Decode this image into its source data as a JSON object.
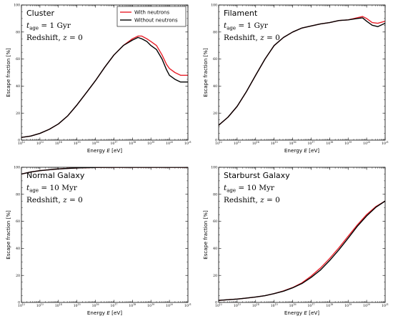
{
  "colors": {
    "with_neutrons": "#e8202a",
    "without_neutrons": "#000000"
  },
  "chart_data": [
    {
      "type": "line",
      "id": "cluster",
      "xscale": "log",
      "xlim": [
        1000000000000.0,
        1e+21
      ],
      "ylim": [
        0,
        100
      ],
      "xlabel": "Energy E [eV]",
      "ylabel": "Escape fraction [%]",
      "x_ticks": [
        "10^12",
        "10^13",
        "10^14",
        "10^15",
        "10^16",
        "10^17",
        "10^18",
        "10^19",
        "10^20",
        "10^21"
      ],
      "y_ticks": [
        "0",
        "20",
        "40",
        "60",
        "80",
        "100"
      ],
      "annotations": [
        "Cluster",
        "t_age = 1 Gyr",
        "Redshift, z = 0"
      ],
      "legend": {
        "placement": "top-right",
        "entries": [
          "With neutrons",
          "Without neutrons"
        ]
      },
      "series": [
        {
          "name": "With neutrons",
          "color": "red",
          "points": [
            [
              1000000000000.0,
              2
            ],
            [
              3200000000000.0,
              3
            ],
            [
              10000000000000.0,
              5
            ],
            [
              32000000000000.0,
              8
            ],
            [
              100000000000000.0,
              12
            ],
            [
              320000000000000.0,
              18
            ],
            [
              1000000000000000.0,
              26
            ],
            [
              3200000000000000.0,
              35
            ],
            [
              1e+16,
              44
            ],
            [
              3.2e+16,
              54
            ],
            [
              1e+17,
              63
            ],
            [
              3.2e+17,
              70
            ],
            [
              1e+18,
              75
            ],
            [
              2e+18,
              77
            ],
            [
              3.2e+18,
              77
            ],
            [
              6e+18,
              75
            ],
            [
              1e+19,
              73
            ],
            [
              2e+19,
              70
            ],
            [
              4e+19,
              63
            ],
            [
              7e+19,
              56
            ],
            [
              1e+20,
              53
            ],
            [
              2e+20,
              50
            ],
            [
              4e+20,
              48
            ],
            [
              1e+21,
              48
            ]
          ]
        },
        {
          "name": "Without neutrons",
          "color": "black",
          "points": [
            [
              1000000000000.0,
              2
            ],
            [
              3200000000000.0,
              3
            ],
            [
              10000000000000.0,
              5
            ],
            [
              32000000000000.0,
              8
            ],
            [
              100000000000000.0,
              12
            ],
            [
              320000000000000.0,
              18
            ],
            [
              1000000000000000.0,
              26
            ],
            [
              3200000000000000.0,
              35
            ],
            [
              1e+16,
              44
            ],
            [
              3.2e+16,
              54
            ],
            [
              1e+17,
              63
            ],
            [
              3.2e+17,
              70
            ],
            [
              1e+18,
              74
            ],
            [
              2e+18,
              76
            ],
            [
              3.2e+18,
              75
            ],
            [
              6e+18,
              73
            ],
            [
              1e+19,
              70
            ],
            [
              2e+19,
              67
            ],
            [
              4e+19,
              60
            ],
            [
              7e+19,
              52
            ],
            [
              1e+20,
              48
            ],
            [
              2e+20,
              45
            ],
            [
              4e+20,
              43
            ],
            [
              1e+21,
              43
            ]
          ]
        }
      ]
    },
    {
      "type": "line",
      "id": "filament",
      "xscale": "log",
      "xlim": [
        1000000000000.0,
        1e+21
      ],
      "ylim": [
        0,
        100
      ],
      "xlabel": "Energy E [eV]",
      "ylabel": "Escape fraction [%]",
      "x_ticks": [
        "10^12",
        "10^13",
        "10^14",
        "10^15",
        "10^16",
        "10^17",
        "10^18",
        "10^19",
        "10^20",
        "10^21"
      ],
      "y_ticks": [
        "0",
        "20",
        "40",
        "60",
        "80",
        "100"
      ],
      "annotations": [
        "Filament",
        "t_age = 1 Gyr",
        "Redshift, z = 0"
      ],
      "series": [
        {
          "name": "With neutrons",
          "color": "red",
          "points": [
            [
              1000000000000.0,
              11
            ],
            [
              3200000000000.0,
              17
            ],
            [
              10000000000000.0,
              25
            ],
            [
              32000000000000.0,
              36
            ],
            [
              100000000000000.0,
              48
            ],
            [
              320000000000000.0,
              60
            ],
            [
              1000000000000000.0,
              70
            ],
            [
              3200000000000000.0,
              76
            ],
            [
              1e+16,
              80
            ],
            [
              3.2e+16,
              83
            ],
            [
              1e+17,
              84.5
            ],
            [
              3.2e+17,
              86
            ],
            [
              1e+18,
              87
            ],
            [
              3.2e+18,
              88.5
            ],
            [
              1e+19,
              89
            ],
            [
              3e+19,
              90.5
            ],
            [
              6e+19,
              91.5
            ],
            [
              1e+20,
              90
            ],
            [
              2e+20,
              87
            ],
            [
              4e+20,
              86.5
            ],
            [
              1e+21,
              88
            ]
          ]
        },
        {
          "name": "Without neutrons",
          "color": "black",
          "points": [
            [
              1000000000000.0,
              11
            ],
            [
              3200000000000.0,
              17
            ],
            [
              10000000000000.0,
              25
            ],
            [
              32000000000000.0,
              36
            ],
            [
              100000000000000.0,
              48
            ],
            [
              320000000000000.0,
              60
            ],
            [
              1000000000000000.0,
              70
            ],
            [
              3200000000000000.0,
              76
            ],
            [
              1e+16,
              80
            ],
            [
              3.2e+16,
              83
            ],
            [
              1e+17,
              84.5
            ],
            [
              3.2e+17,
              86
            ],
            [
              1e+18,
              87
            ],
            [
              3.2e+18,
              88.5
            ],
            [
              1e+19,
              89
            ],
            [
              3e+19,
              90
            ],
            [
              6e+19,
              90.5
            ],
            [
              1e+20,
              88
            ],
            [
              2e+20,
              85
            ],
            [
              4e+20,
              84
            ],
            [
              1e+21,
              86.5
            ]
          ]
        }
      ]
    },
    {
      "type": "line",
      "id": "normal-galaxy",
      "xscale": "log",
      "xlim": [
        1000000000000.0,
        1e+21
      ],
      "ylim": [
        0,
        100
      ],
      "xlabel": "Energy E [eV]",
      "ylabel": "Escape fraction [%]",
      "x_ticks": [
        "10^12",
        "10^13",
        "10^14",
        "10^15",
        "10^16",
        "10^17",
        "10^18",
        "10^19",
        "10^20",
        "10^21"
      ],
      "y_ticks": [
        "0",
        "20",
        "40",
        "60",
        "80",
        "100"
      ],
      "annotations": [
        "Normal Galaxy",
        "t_age = 10 Myr",
        "Redshift, z = 0"
      ],
      "series": [
        {
          "name": "With neutrons",
          "color": "red",
          "points": [
            [
              1000000000000.0,
              95
            ],
            [
              3200000000000.0,
              96.5
            ],
            [
              10000000000000.0,
              97.5
            ],
            [
              32000000000000.0,
              98.2
            ],
            [
              100000000000000.0,
              98.8
            ],
            [
              320000000000000.0,
              99.2
            ],
            [
              1000000000000000.0,
              99.5
            ],
            [
              3200000000000000.0,
              99.7
            ],
            [
              1e+16,
              99.9
            ],
            [
              1e+17,
              100
            ],
            [
              1e+18,
              100
            ],
            [
              1e+19,
              100
            ],
            [
              1e+20,
              100
            ],
            [
              1e+21,
              100
            ]
          ]
        },
        {
          "name": "Without neutrons",
          "color": "black",
          "points": [
            [
              1000000000000.0,
              95
            ],
            [
              3200000000000.0,
              96.5
            ],
            [
              10000000000000.0,
              97.5
            ],
            [
              32000000000000.0,
              98.2
            ],
            [
              100000000000000.0,
              98.8
            ],
            [
              320000000000000.0,
              99.2
            ],
            [
              1000000000000000.0,
              99.5
            ],
            [
              3200000000000000.0,
              99.7
            ],
            [
              1e+16,
              99.9
            ],
            [
              1e+17,
              100
            ],
            [
              1e+18,
              100
            ],
            [
              1e+19,
              100
            ],
            [
              1e+20,
              100
            ],
            [
              1e+21,
              100
            ]
          ]
        }
      ]
    },
    {
      "type": "line",
      "id": "starburst-galaxy",
      "xscale": "log",
      "xlim": [
        1000000000000.0,
        1e+21
      ],
      "ylim": [
        0,
        100
      ],
      "xlabel": "Energy E [eV]",
      "ylabel": "Escape fraction [%]",
      "x_ticks": [
        "10^12",
        "10^13",
        "10^14",
        "10^15",
        "10^16",
        "10^17",
        "10^18",
        "10^19",
        "10^20",
        "10^21"
      ],
      "y_ticks": [
        "0",
        "20",
        "40",
        "60",
        "80",
        "100"
      ],
      "annotations": [
        "Starburst Galaxy",
        "t_age = 10 Myr",
        "Redshift, z = 0"
      ],
      "series": [
        {
          "name": "With neutrons",
          "color": "red",
          "points": [
            [
              1000000000000.0,
              1.5
            ],
            [
              3200000000000.0,
              2
            ],
            [
              10000000000000.0,
              2.5
            ],
            [
              32000000000000.0,
              3.2
            ],
            [
              100000000000000.0,
              4
            ],
            [
              320000000000000.0,
              5
            ],
            [
              1000000000000000.0,
              6.5
            ],
            [
              3200000000000000.0,
              8.5
            ],
            [
              1e+16,
              11
            ],
            [
              3.2e+16,
              14.5
            ],
            [
              1e+17,
              19.5
            ],
            [
              3.2e+17,
              25.5
            ],
            [
              1e+18,
              32.5
            ],
            [
              3.2e+18,
              40.5
            ],
            [
              1e+19,
              49
            ],
            [
              3.2e+19,
              57.5
            ],
            [
              1e+20,
              65
            ],
            [
              3.2e+20,
              71
            ],
            [
              1e+21,
              75
            ]
          ]
        },
        {
          "name": "Without neutrons",
          "color": "black",
          "points": [
            [
              1000000000000.0,
              1.5
            ],
            [
              3200000000000.0,
              2
            ],
            [
              10000000000000.0,
              2.5
            ],
            [
              32000000000000.0,
              3.2
            ],
            [
              100000000000000.0,
              4
            ],
            [
              320000000000000.0,
              5
            ],
            [
              1000000000000000.0,
              6.5
            ],
            [
              3200000000000000.0,
              8.3
            ],
            [
              1e+16,
              10.8
            ],
            [
              3.2e+16,
              14
            ],
            [
              1e+17,
              18.5
            ],
            [
              3.2e+17,
              24
            ],
            [
              1e+18,
              31
            ],
            [
              3.2e+18,
              39
            ],
            [
              1e+19,
              47.5
            ],
            [
              3.2e+19,
              56.5
            ],
            [
              1e+20,
              64
            ],
            [
              3.2e+20,
              70.5
            ],
            [
              1e+21,
              75
            ]
          ]
        }
      ]
    }
  ]
}
